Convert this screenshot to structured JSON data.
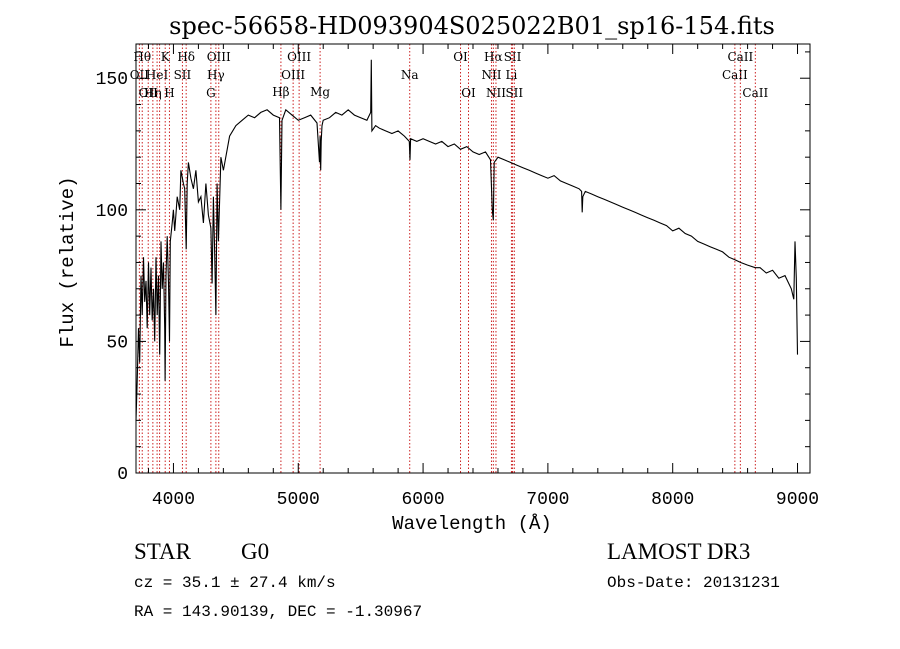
{
  "chart_data": {
    "type": "line",
    "title": "spec-56658-HD093904S025022B01_sp16-154.fits",
    "xlabel": "Wavelength (Å)",
    "ylabel": "Flux (relative)",
    "xlim": [
      3700,
      9100
    ],
    "ylim": [
      0,
      163
    ],
    "x_ticks": [
      "4000",
      "5000",
      "6000",
      "7000",
      "8000",
      "9000"
    ],
    "y_ticks": [
      "0",
      "50",
      "100",
      "150"
    ],
    "grid": false,
    "series": [
      {
        "x": [
          3700,
          3710,
          3720,
          3730,
          3740,
          3750,
          3760,
          3770,
          3780,
          3790,
          3800,
          3810,
          3820,
          3830,
          3840,
          3850,
          3860,
          3870,
          3880,
          3890,
          3900,
          3910,
          3920,
          3930,
          3933,
          3940,
          3950,
          3960,
          3968,
          3975,
          3990,
          4000,
          4010,
          4020,
          4030,
          4050,
          4060,
          4080,
          4090,
          4102,
          4110,
          4120,
          4140,
          4160,
          4180,
          4200,
          4220,
          4240,
          4260,
          4280,
          4300,
          4310,
          4320,
          4330,
          4340,
          4350,
          4360,
          4380,
          4400,
          4450,
          4500,
          4550,
          4600,
          4650,
          4700,
          4750,
          4800,
          4850,
          4861,
          4870,
          4900,
          4950,
          5000,
          5050,
          5100,
          5150,
          5170,
          5175,
          5180,
          5184,
          5190,
          5200,
          5250,
          5300,
          5350,
          5400,
          5450,
          5500,
          5550,
          5580,
          5585,
          5590,
          5620,
          5650,
          5700,
          5750,
          5800,
          5850,
          5890,
          5895,
          5900,
          5950,
          6000,
          6050,
          6100,
          6150,
          6200,
          6250,
          6300,
          6350,
          6400,
          6450,
          6500,
          6540,
          6555,
          6563,
          6570,
          6600,
          6650,
          6700,
          6750,
          6800,
          6850,
          6900,
          6950,
          7000,
          7050,
          7100,
          7150,
          7200,
          7250,
          7270,
          7275,
          7280,
          7300,
          7350,
          7400,
          7450,
          7500,
          7550,
          7600,
          7650,
          7700,
          7750,
          7800,
          7850,
          7900,
          7950,
          8000,
          8050,
          8100,
          8150,
          8200,
          8250,
          8300,
          8350,
          8400,
          8450,
          8498,
          8542,
          8600,
          8662,
          8700,
          8750,
          8800,
          8850,
          8900,
          8950,
          8970,
          8980,
          8990,
          9000
        ],
        "y": [
          20,
          35,
          55,
          42,
          75,
          60,
          82,
          65,
          73,
          55,
          80,
          60,
          78,
          58,
          70,
          50,
          82,
          60,
          75,
          45,
          88,
          70,
          80,
          55,
          35,
          75,
          90,
          72,
          50,
          88,
          95,
          100,
          92,
          98,
          105,
          100,
          115,
          110,
          108,
          85,
          110,
          118,
          112,
          108,
          115,
          103,
          105,
          95,
          110,
          98,
          93,
          72,
          105,
          85,
          60,
          110,
          88,
          120,
          115,
          128,
          132,
          134,
          136,
          135,
          137,
          138,
          136,
          135,
          100,
          134,
          138,
          136,
          134,
          135,
          136,
          133,
          118,
          128,
          115,
          126,
          132,
          134,
          135,
          137,
          136,
          138,
          136,
          135,
          134,
          137,
          157,
          130,
          132,
          131,
          130,
          129,
          130,
          128,
          126,
          119,
          127,
          126,
          127,
          126,
          125,
          126,
          124,
          125,
          123,
          124,
          122,
          121,
          122,
          119,
          100,
          96,
          118,
          120,
          119,
          118,
          117,
          116,
          115,
          114,
          113,
          112,
          113,
          111,
          110,
          109,
          108,
          107,
          99,
          105,
          107,
          106,
          105,
          104,
          103,
          102,
          101,
          100,
          99,
          98,
          97,
          96,
          95,
          94,
          92,
          93,
          91,
          90,
          88,
          87,
          86,
          85,
          84,
          82,
          81,
          80,
          79,
          78,
          78,
          76,
          77,
          74,
          75,
          70,
          66,
          88,
          74,
          45
        ]
      }
    ],
    "lines": [
      {
        "x": 3727,
        "top": "OII",
        "pos": 1
      },
      {
        "x": 3750,
        "top": "Hθ",
        "pos": 0
      },
      {
        "x": 3798,
        "top": "OII",
        "pos": 2
      },
      {
        "x": 3835,
        "top": "Hη",
        "pos": 2
      },
      {
        "x": 3869,
        "top": "HeI",
        "pos": 1
      },
      {
        "x": 3889,
        "top": "",
        "pos": -1
      },
      {
        "x": 3934,
        "top": "K",
        "pos": 0
      },
      {
        "x": 3968,
        "top": "H",
        "pos": 2
      },
      {
        "x": 4072,
        "top": "SII",
        "pos": 1
      },
      {
        "x": 4102,
        "top": "Hδ",
        "pos": 0
      },
      {
        "x": 4300,
        "top": "G",
        "pos": 2
      },
      {
        "x": 4340,
        "top": "Hγ",
        "pos": 1
      },
      {
        "x": 4363,
        "top": "OIII",
        "pos": 0
      },
      {
        "x": 4861,
        "top": "Hβ",
        "pos": 3
      },
      {
        "x": 4959,
        "top": "OIII",
        "pos": 1
      },
      {
        "x": 5007,
        "top": "OIII",
        "pos": 0
      },
      {
        "x": 5175,
        "top": "Mg",
        "pos": 3
      },
      {
        "x": 5893,
        "top": "Na",
        "pos": 1
      },
      {
        "x": 6300,
        "top": "OI",
        "pos": 0
      },
      {
        "x": 6364,
        "top": "OI",
        "pos": 2
      },
      {
        "x": 6548,
        "top": "NII",
        "pos": 1
      },
      {
        "x": 6563,
        "top": "Hα",
        "pos": 0
      },
      {
        "x": 6584,
        "top": "NII",
        "pos": 2
      },
      {
        "x": 6708,
        "top": "Li",
        "pos": 1
      },
      {
        "x": 6717,
        "top": "SII",
        "pos": 0
      },
      {
        "x": 6731,
        "top": "SII",
        "pos": 2
      },
      {
        "x": 8498,
        "top": "CaII",
        "pos": 1
      },
      {
        "x": 8542,
        "top": "CaII",
        "pos": 0
      },
      {
        "x": 8662,
        "top": "CaII",
        "pos": 2
      }
    ]
  },
  "info": {
    "object_class": "STAR",
    "subclass": "G0",
    "survey": "LAMOST DR3",
    "redshift": "cz = 35.1 ± 27.4 km/s",
    "obs_date": "Obs-Date: 20131231",
    "coords": "RA = 143.90139, DEC =  -1.30967"
  },
  "colors": {
    "line_markers": "#cc2222",
    "spectrum": "#000000"
  }
}
